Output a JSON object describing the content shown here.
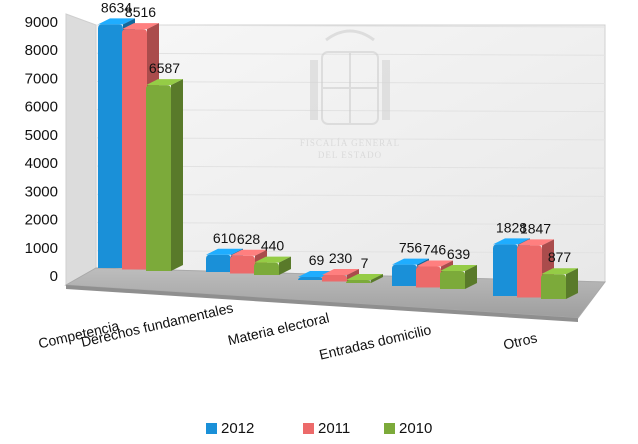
{
  "chart_data": {
    "type": "bar",
    "style": "3d-clustered-column",
    "categories": [
      "Competencia",
      "Derechos fundamentales",
      "Materia electoral",
      "Entradas domicilio",
      "Otros"
    ],
    "series": [
      {
        "name": "2012",
        "color": "#1a90d8",
        "values": [
          8634,
          610,
          69,
          756,
          1828
        ]
      },
      {
        "name": "2011",
        "color": "#ec6a6a",
        "values": [
          8516,
          628,
          230,
          746,
          1847
        ]
      },
      {
        "name": "2010",
        "color": "#7caa3a",
        "values": [
          6587,
          440,
          7,
          639,
          877
        ]
      }
    ],
    "yticks": [
      "0",
      "1000",
      "2000",
      "3000",
      "4000",
      "5000",
      "6000",
      "7000",
      "8000",
      "9000"
    ],
    "ylim": [
      0,
      9000
    ],
    "grid": true,
    "legend_position": "bottom",
    "watermark": {
      "text_line1": "FISCALÍA GENERAL",
      "text_line2": "DEL ESTADO"
    }
  }
}
